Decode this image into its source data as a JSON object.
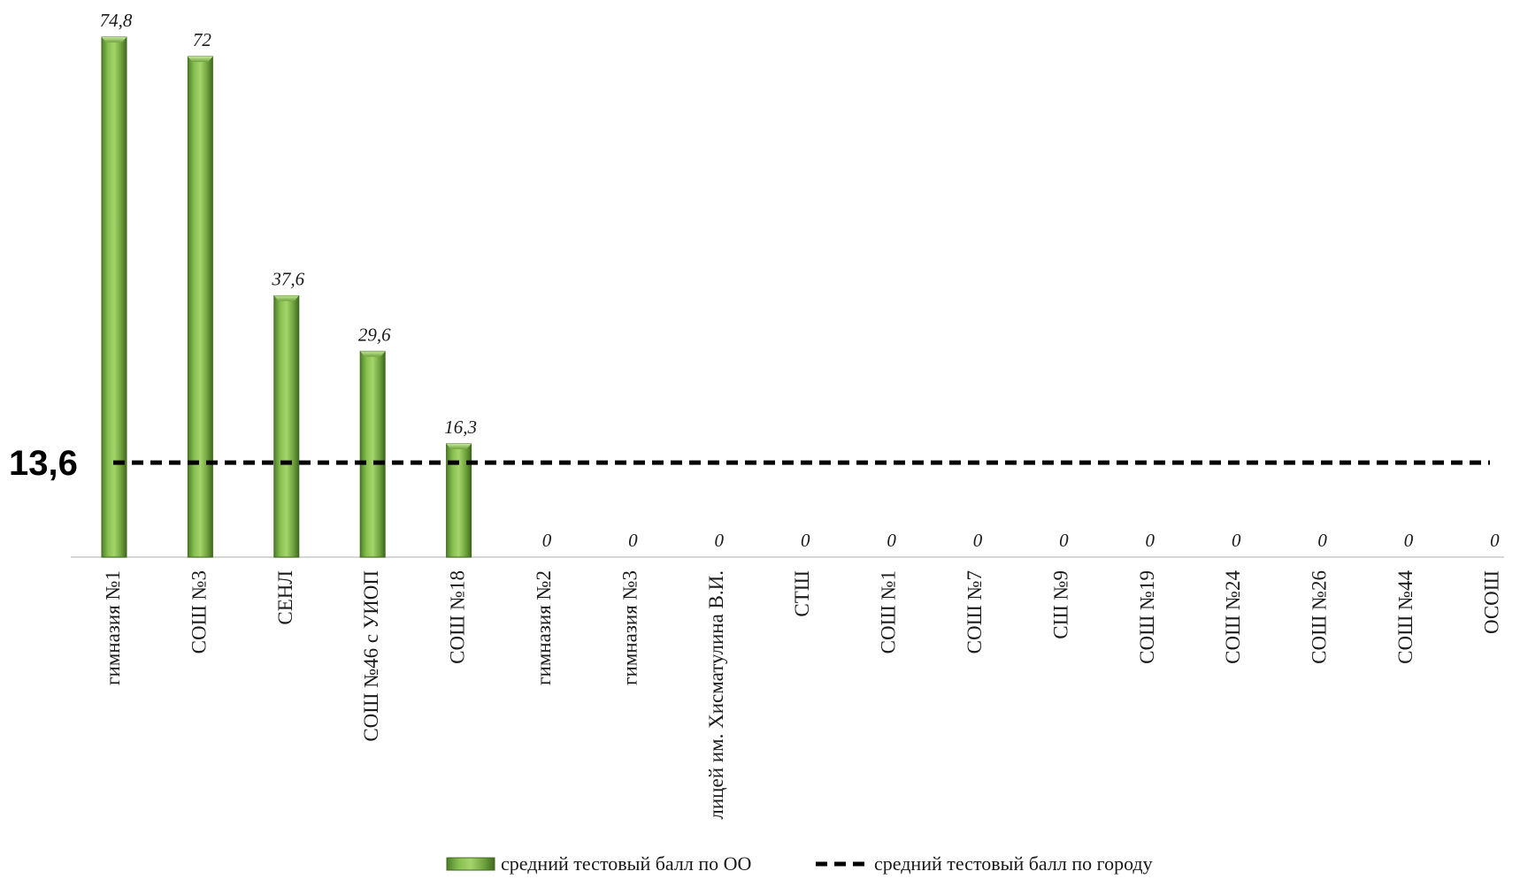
{
  "chart_data": {
    "type": "bar",
    "categories": [
      "гимназия №1",
      "СОШ №3",
      "СЕНЛ",
      "СОШ №46 с УИОП",
      "СОШ №18",
      "гимназия №2",
      "гимназия №3",
      "лицей им. Хисматулина В.И.",
      "СТШ",
      "СОШ №1",
      "СОШ №7",
      "СШ №9",
      "СОШ №19",
      "СОШ №24",
      "СОШ №26",
      "СОШ №44",
      "ОСОШ"
    ],
    "series": [
      {
        "name": "средний тестовый балл по ОО",
        "values": [
          74.8,
          72,
          37.6,
          29.6,
          16.3,
          0,
          0,
          0,
          0,
          0,
          0,
          0,
          0,
          0,
          0,
          0,
          0
        ],
        "labels": [
          "74,8",
          "72",
          "37,6",
          "29,6",
          "16,3",
          "0",
          "0",
          "0",
          "0",
          "0",
          "0",
          "0",
          "0",
          "0",
          "0",
          "0",
          "0"
        ],
        "color": "#77b043"
      }
    ],
    "reference_line": {
      "name": "средний тестовый балл по городу",
      "value": 13.6,
      "label": "13,6",
      "color": "#000000",
      "style": "dashed"
    },
    "ylim": [
      0,
      75
    ],
    "grid": false,
    "legend_position": "bottom-center"
  }
}
